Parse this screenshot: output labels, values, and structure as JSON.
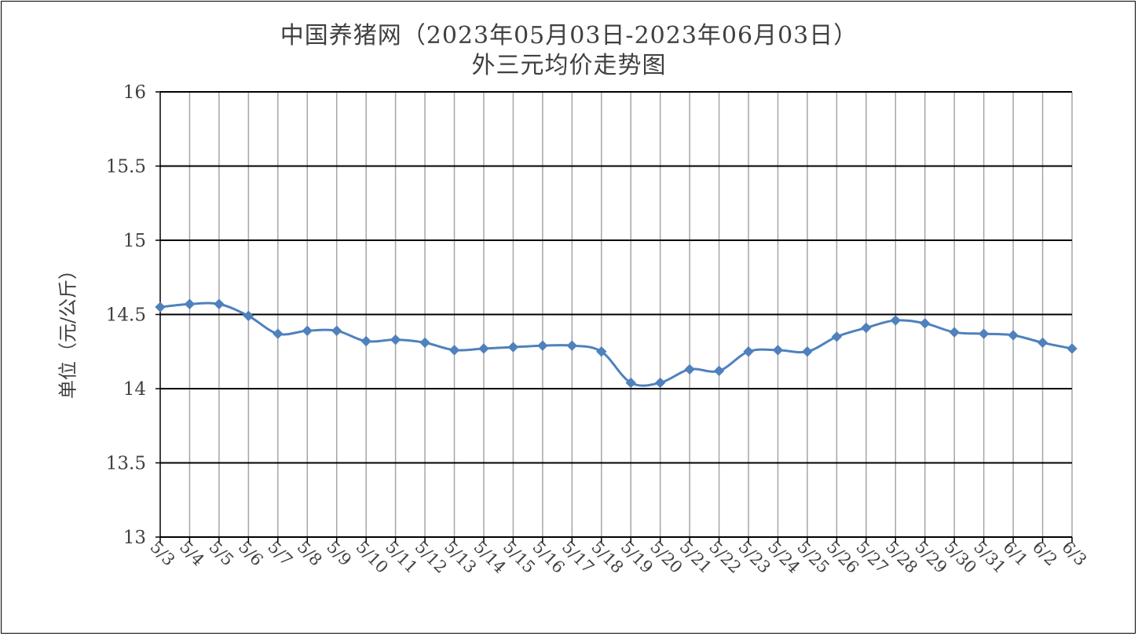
{
  "chart_data": {
    "type": "line",
    "title_line1": "中国养猪网（2023年05月03日-2023年06月03日）",
    "title_line2": "外三元均价走势图",
    "ylabel": "单位（元/公斤）",
    "xlabel": "",
    "ylim": [
      13,
      16
    ],
    "ytick_values": [
      13,
      13.5,
      14,
      14.5,
      15,
      15.5,
      16
    ],
    "ytick_labels": [
      "13",
      "13.5",
      "14",
      "14.5",
      "15",
      "15.5",
      "16"
    ],
    "grid": true,
    "legend": "none",
    "series_color": "#4F81BD",
    "categories": [
      "5/3",
      "5/4",
      "5/5",
      "5/6",
      "5/7",
      "5/8",
      "5/9",
      "5/10",
      "5/11",
      "5/12",
      "5/13",
      "5/14",
      "5/15",
      "5/16",
      "5/17",
      "5/18",
      "5/19",
      "5/20",
      "5/21",
      "5/22",
      "5/23",
      "5/24",
      "5/25",
      "5/26",
      "5/27",
      "5/28",
      "5/29",
      "5/30",
      "5/31",
      "6/1",
      "6/2",
      "6/3"
    ],
    "series": [
      {
        "values": [
          14.55,
          14.57,
          14.57,
          14.49,
          14.37,
          14.39,
          14.39,
          14.32,
          14.33,
          14.31,
          14.26,
          14.27,
          14.28,
          14.29,
          14.29,
          14.25,
          14.04,
          14.04,
          14.13,
          14.12,
          14.25,
          14.26,
          14.25,
          14.35,
          14.41,
          14.46,
          14.44,
          14.38,
          14.37,
          14.36,
          14.31,
          14.27
        ]
      }
    ]
  }
}
